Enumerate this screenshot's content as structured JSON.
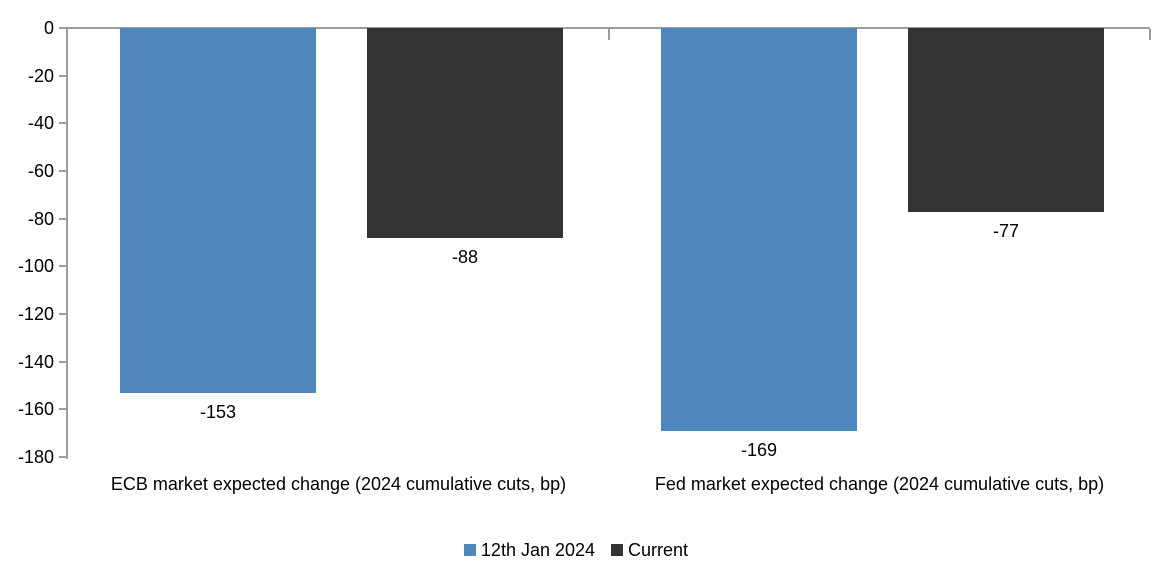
{
  "chart_data": {
    "type": "bar",
    "categories": [
      "ECB market expected change (2024 cumulative cuts, bp)",
      "Fed market expected change (2024 cumulative cuts, bp)"
    ],
    "series": [
      {
        "name": "12th Jan 2024",
        "color": "#4E86BD",
        "values": [
          -153,
          -169
        ]
      },
      {
        "name": "Current",
        "color": "#333333",
        "values": [
          -88,
          -77
        ]
      }
    ],
    "ylim": [
      -180,
      0
    ],
    "yticks": [
      0,
      -20,
      -40,
      -60,
      -80,
      -100,
      -120,
      -140,
      -160,
      -180
    ],
    "grid": false,
    "legend_position": "bottom",
    "data_labels": true,
    "axis_color": "#9D9D9D",
    "background": "#FFFFFF",
    "text_color": "#000000"
  }
}
